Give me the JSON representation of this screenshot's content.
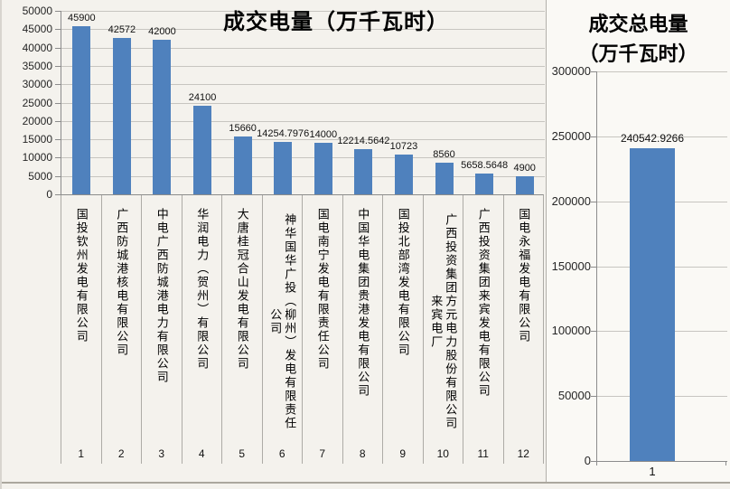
{
  "colors": {
    "bar": "#4f81bd",
    "gridline": "#c7c5c0",
    "axis": "#8c8c8c",
    "text": "#111111",
    "background": "#f4f2ed"
  },
  "chart_data": [
    {
      "id": "deal-volume-by-company",
      "type": "bar",
      "title": "成交电量（万千瓦时）",
      "categories": [
        "国投钦州发电有限公司",
        "广西防城港核电有限公司",
        "中电广西防城港电力有限公司",
        "华润电力（贺州）有限公司",
        "大唐桂冠合山发电有限公司",
        "神华国华广投（柳州）发电有限责任公司",
        "国电南宁发电有限责任公司",
        "中国华电集团贵港发电有限公司",
        "国投北部湾发电有限公司",
        "广西投资集团方元电力股份有限公司来宾电厂",
        "广西投资集团来宾发电有限公司",
        "国电永福发电有限公司"
      ],
      "category_indices": [
        "1",
        "2",
        "3",
        "4",
        "5",
        "6",
        "7",
        "8",
        "9",
        "10",
        "11",
        "12"
      ],
      "values": [
        45900,
        42572,
        42000,
        24100,
        15660,
        14254.7976,
        14000,
        12214.5642,
        10723,
        8560,
        5658.5648,
        4900
      ],
      "value_labels": [
        "45900",
        "42572",
        "42000",
        "24100",
        "15660",
        "14254.7976",
        "14000",
        "12214.5642",
        "10723",
        "8560",
        "5658.5648",
        "4900"
      ],
      "ylim": [
        0,
        50000
      ],
      "ytick_step": 5000,
      "ytick_labels": [
        "0",
        "5000",
        "10000",
        "15000",
        "20000",
        "25000",
        "30000",
        "35000",
        "40000",
        "45000",
        "50000"
      ],
      "grid": true,
      "legend": "none",
      "bar_color": "#4f81bd"
    },
    {
      "id": "deal-total-volume",
      "type": "bar",
      "title": "成交总电量（万千瓦时）",
      "title_lines": [
        "成交总电量",
        "（万千瓦时）"
      ],
      "categories": [
        "1"
      ],
      "category_indices": [
        "1"
      ],
      "values": [
        240542.9266
      ],
      "value_labels": [
        "240542.9266"
      ],
      "ylim": [
        0,
        300000
      ],
      "ytick_step": 50000,
      "ytick_labels": [
        "0",
        "50000",
        "100000",
        "150000",
        "200000",
        "250000",
        "300000"
      ],
      "grid": true,
      "legend": "none",
      "bar_color": "#4f81bd"
    }
  ]
}
